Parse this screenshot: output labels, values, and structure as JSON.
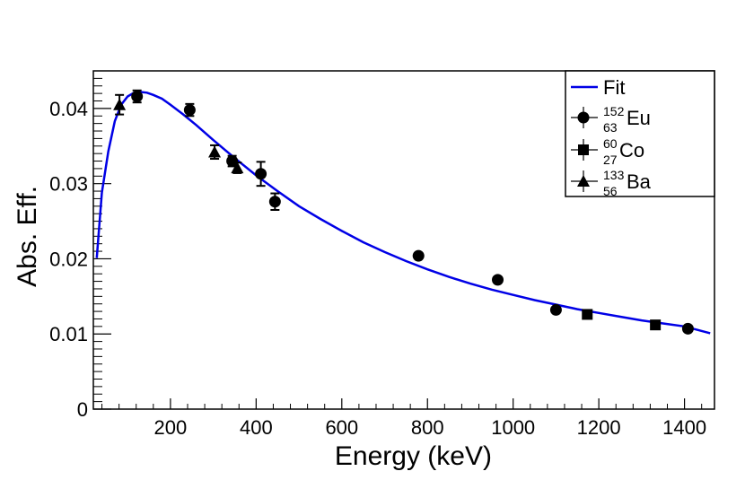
{
  "chart_data": {
    "type": "scatter",
    "title": "",
    "xlabel": "Energy (keV)",
    "ylabel": "Abs. Eff.",
    "xlim": [
      20,
      1470
    ],
    "ylim": [
      0,
      0.045
    ],
    "x_ticks": [
      200,
      400,
      600,
      800,
      1000,
      1200,
      1400
    ],
    "x_tick_labels": [
      "200",
      "400",
      "600",
      "800",
      "1000",
      "1200",
      "1400"
    ],
    "y_ticks": [
      0,
      0.01,
      0.02,
      0.03,
      0.04
    ],
    "y_tick_labels": [
      "0",
      "0.01",
      "0.02",
      "0.03",
      "0.04"
    ],
    "grid": false,
    "legend_position": "top-right",
    "legend": [
      {
        "id": "fit",
        "label": "Fit",
        "marker": "line"
      },
      {
        "id": "eu",
        "mass": "152",
        "atomic": "63",
        "symbol": "Eu",
        "marker": "circle"
      },
      {
        "id": "co",
        "mass": "60",
        "atomic": "27",
        "symbol": "Co",
        "marker": "square"
      },
      {
        "id": "ba",
        "mass": "133",
        "atomic": "56",
        "symbol": "Ba",
        "marker": "triangle"
      }
    ],
    "fit": {
      "color": "#0000e6",
      "x": [
        28,
        40,
        55,
        70,
        85,
        100,
        115,
        130,
        145,
        160,
        180,
        200,
        230,
        260,
        300,
        350,
        400,
        450,
        500,
        550,
        600,
        650,
        700,
        750,
        800,
        850,
        900,
        950,
        1000,
        1050,
        1100,
        1150,
        1200,
        1250,
        1300,
        1350,
        1400,
        1460
      ],
      "y": [
        0.0201,
        0.0288,
        0.0343,
        0.0383,
        0.0405,
        0.0416,
        0.0421,
        0.0422,
        0.0421,
        0.0418,
        0.0413,
        0.0405,
        0.0392,
        0.0378,
        0.0358,
        0.0334,
        0.0311,
        0.029,
        0.027,
        0.0253,
        0.0237,
        0.0222,
        0.0209,
        0.0197,
        0.0186,
        0.0176,
        0.0167,
        0.0159,
        0.0152,
        0.0145,
        0.0139,
        0.0133,
        0.0128,
        0.0123,
        0.0118,
        0.0114,
        0.011,
        0.0101
      ]
    },
    "series": [
      {
        "id": "eu",
        "marker": "circle",
        "points": [
          {
            "x": 122,
            "y": 0.0416,
            "err": 0.0008
          },
          {
            "x": 245,
            "y": 0.0398,
            "err": 0.0008
          },
          {
            "x": 344,
            "y": 0.033,
            "err": 0.0007
          },
          {
            "x": 411,
            "y": 0.0313,
            "err": 0.0016
          },
          {
            "x": 444,
            "y": 0.0276,
            "err": 0.0011
          },
          {
            "x": 779,
            "y": 0.0204,
            "err": 0
          },
          {
            "x": 964,
            "y": 0.0172,
            "err": 0
          },
          {
            "x": 1100,
            "y": 0.0132,
            "err": 0
          },
          {
            "x": 1408,
            "y": 0.0107,
            "err": 0
          }
        ]
      },
      {
        "id": "co",
        "marker": "square",
        "points": [
          {
            "x": 1173,
            "y": 0.0126,
            "err": 0
          },
          {
            "x": 1332,
            "y": 0.0112,
            "err": 0
          }
        ]
      },
      {
        "id": "ba",
        "marker": "triangle",
        "points": [
          {
            "x": 81,
            "y": 0.0405,
            "err": 0.0013
          },
          {
            "x": 303,
            "y": 0.0342,
            "err": 0.0009
          },
          {
            "x": 356,
            "y": 0.0321,
            "err": 0.0007
          }
        ]
      }
    ]
  }
}
